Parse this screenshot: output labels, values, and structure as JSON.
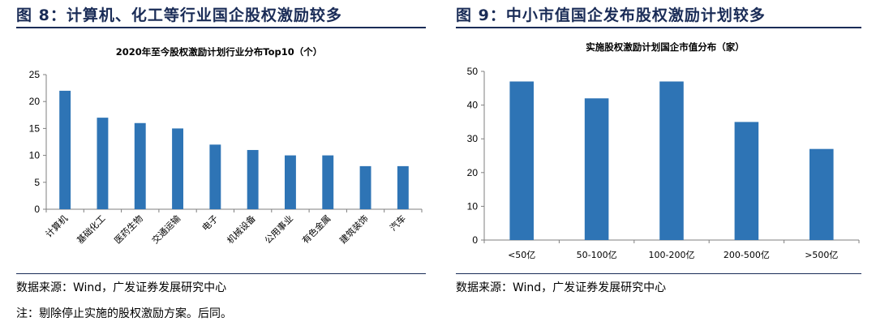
{
  "left": {
    "fig_title": "图 8：计算机、化工等行业国企股权激励较多",
    "source": "数据来源：Wind，广发证券发展研究中心",
    "note": "注：剔除停止实施的股权激励方案。后同。"
  },
  "right": {
    "fig_title": "图 9：中小市值国企发布股权激励计划较多",
    "source": "数据来源：Wind，广发证券发展研究中心"
  },
  "chart_data": [
    {
      "type": "bar",
      "title": "2020年至今股权激励计划行业分布Top10（个）",
      "categories": [
        "计算机",
        "基础化工",
        "医药生物",
        "交通运输",
        "电子",
        "机械设备",
        "公用事业",
        "有色金属",
        "建筑装饰",
        "汽车"
      ],
      "values": [
        22,
        17,
        16,
        15,
        12,
        11,
        10,
        10,
        8,
        8
      ],
      "ylim": [
        0,
        25
      ],
      "yticks": [
        0,
        5,
        10,
        15,
        20,
        25
      ],
      "color": "#2e74b5",
      "grid": false
    },
    {
      "type": "bar",
      "title": "实施股权激励计划国企市值分布（家）",
      "categories": [
        "<50亿",
        "50-100亿",
        "100-200亿",
        "200-500亿",
        ">500亿"
      ],
      "values": [
        47,
        42,
        47,
        35,
        27
      ],
      "ylim": [
        0,
        50
      ],
      "yticks": [
        0,
        10,
        20,
        30,
        40,
        50
      ],
      "color": "#2e74b5",
      "grid": false
    }
  ]
}
